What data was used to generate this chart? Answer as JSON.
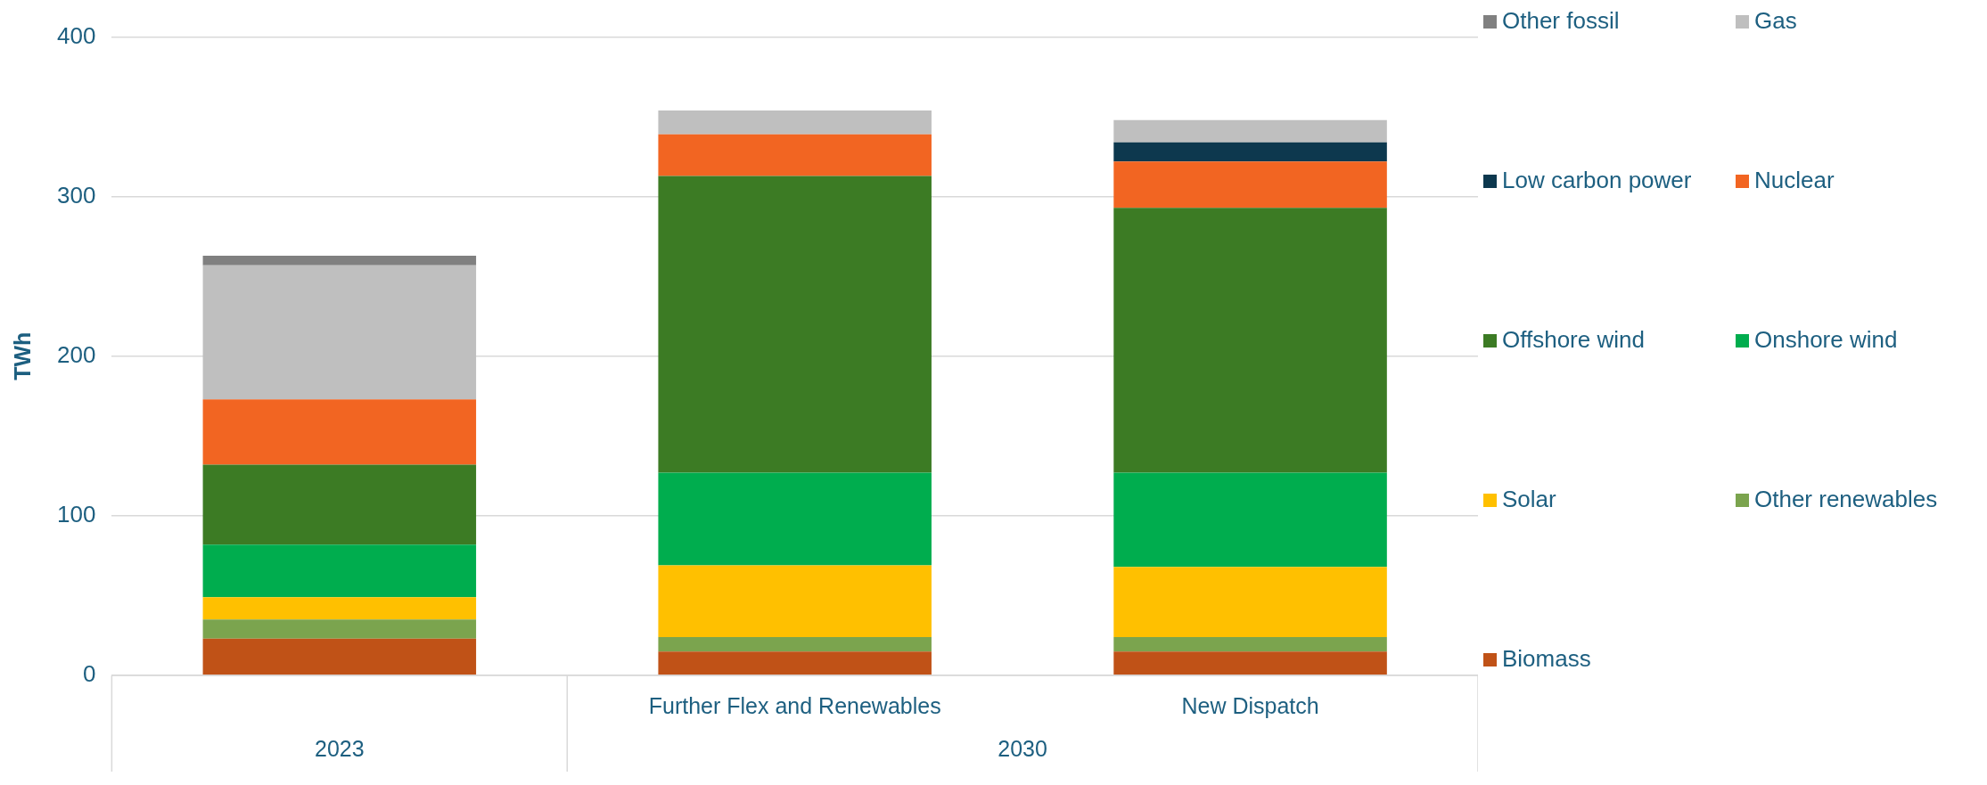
{
  "chart_data": {
    "type": "bar",
    "stacked": true,
    "ylabel": "TWh",
    "categories": [
      null,
      "Further Flex and Renewables",
      "New Dispatch"
    ],
    "annotations": [
      "2023",
      "2030"
    ],
    "ylim": [
      0,
      400
    ],
    "yticks": [
      0,
      100,
      200,
      300,
      400
    ],
    "grid": "y",
    "legend": "right",
    "series": [
      {
        "name": "Biomass",
        "color": "#c05217",
        "values": [
          23,
          15,
          15
        ]
      },
      {
        "name": "Other renewables",
        "color": "#7ba44e",
        "values": [
          12,
          9,
          9
        ]
      },
      {
        "name": "Solar",
        "color": "#ffc000",
        "values": [
          14,
          45,
          44
        ]
      },
      {
        "name": "Onshore wind",
        "color": "#00ad4e",
        "values": [
          33,
          58,
          59
        ]
      },
      {
        "name": "Offshore wind",
        "color": "#3c7b24",
        "values": [
          50,
          186,
          166
        ]
      },
      {
        "name": "Nuclear",
        "color": "#f26522",
        "values": [
          41,
          26,
          29
        ]
      },
      {
        "name": "Low carbon power",
        "color": "#0d384e",
        "values": [
          0,
          0,
          12
        ]
      },
      {
        "name": "Gas",
        "color": "#bfbfbf",
        "values": [
          84,
          15,
          14
        ]
      },
      {
        "name": "Other fossil",
        "color": "#808080",
        "values": [
          6,
          0,
          0
        ]
      }
    ]
  }
}
